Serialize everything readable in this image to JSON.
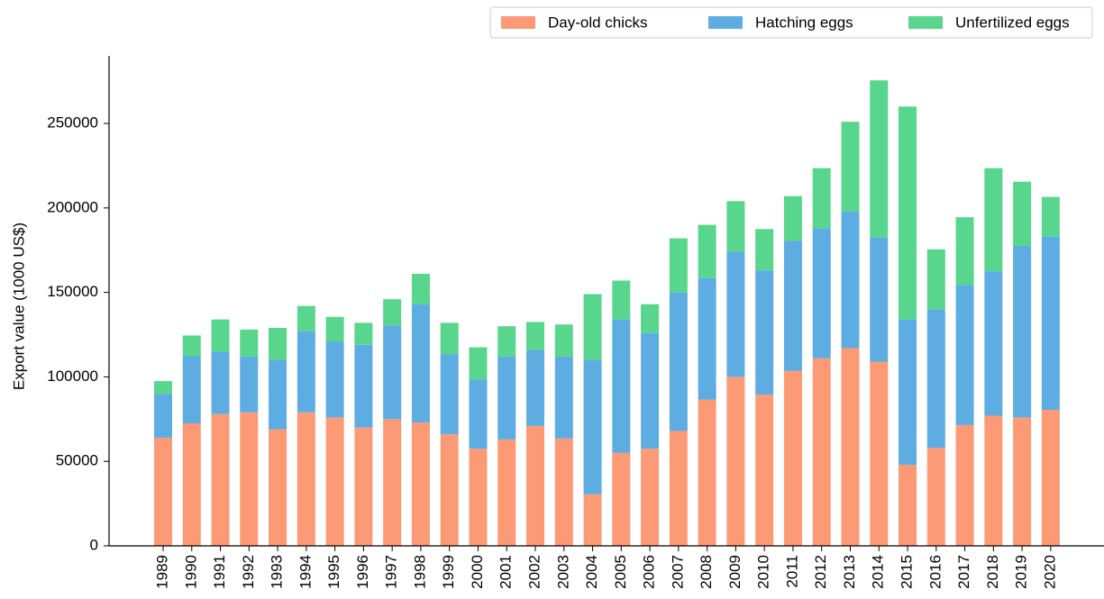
{
  "chart_data": {
    "type": "stacked_bar",
    "y_label": "Export value (1000 US$)",
    "categories": [
      "1989",
      "1990",
      "1991",
      "1992",
      "1993",
      "1994",
      "1995",
      "1996",
      "1997",
      "1998",
      "1999",
      "2000",
      "2001",
      "2002",
      "2003",
      "2004",
      "2005",
      "2006",
      "2007",
      "2008",
      "2009",
      "2010",
      "2011",
      "2012",
      "2013",
      "2014",
      "2015",
      "2016",
      "2017",
      "2018",
      "2019",
      "2020"
    ],
    "series": [
      {
        "name": "Day-old chicks",
        "color": "#fc9a76",
        "values": [
          64000,
          72500,
          78000,
          79000,
          69000,
          79000,
          76000,
          70000,
          75000,
          73000,
          66000,
          57500,
          63000,
          71000,
          63500,
          30500,
          55000,
          57500,
          68000,
          86500,
          100000,
          89500,
          103500,
          111000,
          117000,
          109000,
          48000,
          58000,
          71500,
          77000,
          76000,
          80500
        ]
      },
      {
        "name": "Hatching eggs",
        "color": "#5dade2",
        "values": [
          26000,
          40000,
          37000,
          33000,
          41000,
          48000,
          45000,
          49000,
          55500,
          70000,
          47500,
          41000,
          49000,
          45000,
          48500,
          79500,
          79000,
          68500,
          82000,
          72000,
          74000,
          73500,
          77000,
          77000,
          81000,
          73500,
          86000,
          82000,
          83000,
          85500,
          101500,
          102500
        ]
      },
      {
        "name": "Unfertilized eggs",
        "color": "#58d68d",
        "values": [
          7500,
          12000,
          19000,
          16000,
          19000,
          15000,
          14500,
          13000,
          15500,
          18000,
          18500,
          19000,
          18000,
          16500,
          19000,
          39000,
          23000,
          17000,
          32000,
          31500,
          30000,
          24500,
          26500,
          35500,
          53000,
          93000,
          126000,
          35500,
          40000,
          61000,
          38000,
          23500
        ]
      }
    ],
    "ylim": [
      0,
      290000
    ],
    "yticks": [
      0,
      50000,
      100000,
      150000,
      200000,
      250000
    ],
    "legend": "top-right"
  }
}
